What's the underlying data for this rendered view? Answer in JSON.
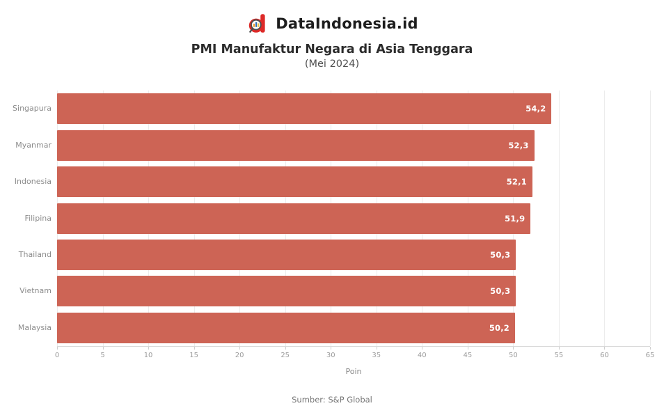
{
  "header": {
    "brand": "DataIndonesia.id",
    "title": "PMI Manufaktur Negara di Asia Tenggara",
    "subtitle": "(Mei 2024)"
  },
  "chart_data": {
    "type": "bar",
    "orientation": "horizontal",
    "title": "PMI Manufaktur Negara di Asia Tenggara",
    "subtitle": "(Mei 2024)",
    "categories": [
      "Singapura",
      "Myanmar",
      "Indonesia",
      "Filipina",
      "Thailand",
      "Vietnam",
      "Malaysia"
    ],
    "values": [
      54.2,
      52.3,
      52.1,
      51.9,
      50.3,
      50.3,
      50.2
    ],
    "value_labels": [
      "54,2",
      "52,3",
      "52,1",
      "51,9",
      "50,3",
      "50,3",
      "50,2"
    ],
    "xlabel": "Poin",
    "ylabel": "",
    "xlim": [
      0,
      65
    ],
    "xticks": [
      0,
      5,
      10,
      15,
      20,
      25,
      30,
      35,
      40,
      45,
      50,
      55,
      60,
      65
    ],
    "grid": "vertical",
    "legend": "none",
    "bar_color": "#CD6455",
    "value_label_color": "#FFFFFF",
    "logo_red": "#DD2A28"
  },
  "footer": {
    "source": "Sumber: S&P Global"
  }
}
